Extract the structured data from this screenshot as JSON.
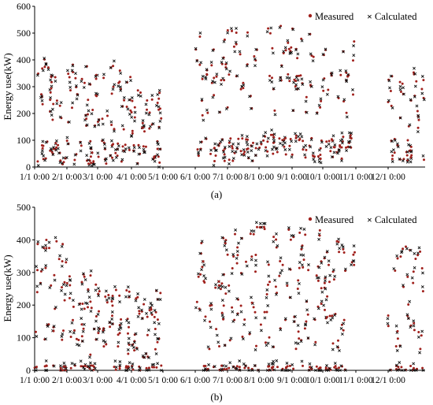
{
  "figure": {
    "panels": [
      "(a)",
      "(b)"
    ]
  },
  "chart_data": [
    {
      "type": "scatter",
      "panel_label": "(a)",
      "xlabel": "",
      "ylabel": "Energy use(kW)",
      "ylim": [
        0,
        600
      ],
      "yticks": [
        0,
        100,
        200,
        300,
        400,
        500,
        600
      ],
      "xticks": [
        "1/1 0:00",
        "2/1 0:00",
        "3/1 0:00",
        "4/1 0:00",
        "5/1 0:00",
        "6/1 0:00",
        "7/1 0:00",
        "8/1 0:00",
        "9/1 0:00",
        "10/1 0:00",
        "11/1 0:00",
        "12/1 0:00"
      ],
      "grid": false,
      "legend_position": "top-right",
      "data_gaps": [
        [
          "4/1",
          "6/1"
        ],
        [
          "10/1",
          "12/1"
        ]
      ],
      "series": [
        {
          "name": "Measured",
          "marker": "dot",
          "color": "#a0201c",
          "monthly_ranges": [
            [
              10,
              420
            ],
            [
              10,
              400
            ],
            [
              10,
              380
            ],
            [
              10,
              300
            ],
            null,
            [
              20,
              500
            ],
            [
              20,
              520
            ],
            [
              30,
              530
            ],
            [
              30,
              520
            ],
            [
              30,
              480
            ],
            null,
            [
              20,
              380
            ]
          ]
        },
        {
          "name": "Calculated",
          "marker": "x",
          "color": "#111111",
          "monthly_ranges": [
            [
              20,
              470
            ],
            [
              20,
              420
            ],
            [
              20,
              410
            ],
            [
              20,
              300
            ],
            null,
            [
              30,
              520
            ],
            [
              30,
              530
            ],
            [
              40,
              545
            ],
            [
              40,
              525
            ],
            [
              40,
              490
            ],
            null,
            [
              30,
              400
            ]
          ]
        }
      ]
    },
    {
      "type": "scatter",
      "panel_label": "(b)",
      "xlabel": "",
      "ylabel": "Energy use(kW)",
      "ylim": [
        0,
        500
      ],
      "yticks": [
        0,
        100,
        200,
        300,
        400,
        500
      ],
      "xticks": [
        "1/1 0:00",
        "2/1 0:00",
        "3/1 0:00",
        "4/1 0:00",
        "5/1 0:00",
        "6/1 0:00",
        "7/1 0:00",
        "8/1 0:00",
        "9/1 0:00",
        "10/1 0:00",
        "11/1 0:00",
        "12/1 0:00"
      ],
      "grid": false,
      "legend_position": "top-right",
      "data_gaps": [
        [
          "4/1",
          "6/1"
        ],
        [
          "10/1",
          "12/1"
        ]
      ],
      "series": [
        {
          "name": "Measured",
          "marker": "dot",
          "color": "#a0201c",
          "monthly_ranges": [
            [
              0,
              400
            ],
            [
              0,
              300
            ],
            [
              0,
              250
            ],
            [
              0,
              250
            ],
            null,
            [
              0,
              420
            ],
            [
              0,
              460
            ],
            [
              0,
              440
            ],
            [
              0,
              430
            ],
            [
              0,
              420
            ],
            null,
            [
              0,
              380
            ]
          ]
        },
        {
          "name": "Calculated",
          "marker": "x",
          "color": "#111111",
          "monthly_ranges": [
            [
              0,
              420
            ],
            [
              0,
              320
            ],
            [
              0,
              260
            ],
            [
              0,
              260
            ],
            null,
            [
              0,
              440
            ],
            [
              0,
              470
            ],
            [
              0,
              450
            ],
            [
              0,
              440
            ],
            [
              0,
              410
            ],
            null,
            [
              0,
              385
            ]
          ]
        }
      ]
    }
  ],
  "colors": {
    "measured": "#a0201c",
    "calculated": "#111111",
    "axis": "#000000"
  }
}
